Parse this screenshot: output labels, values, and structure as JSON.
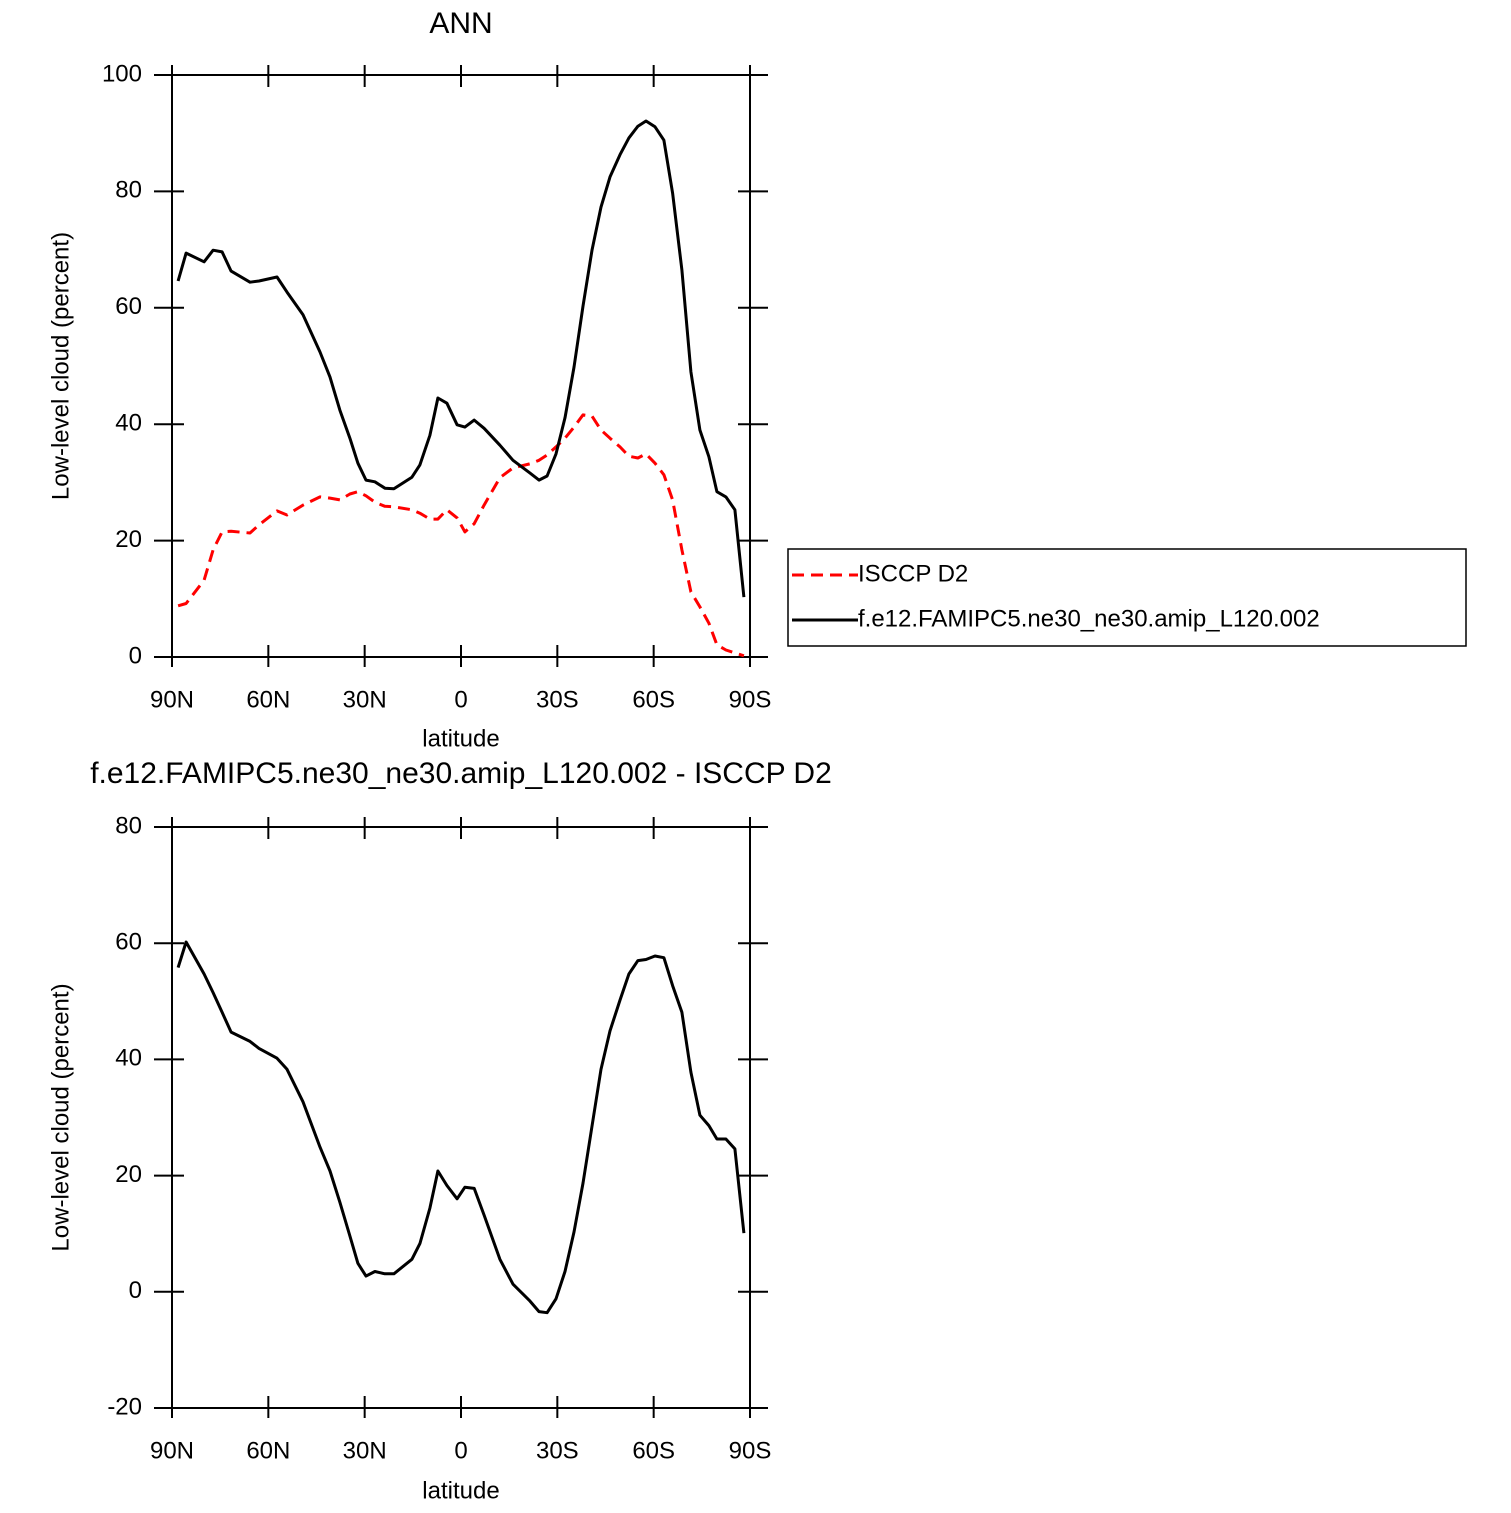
{
  "chart_data": [
    {
      "type": "line",
      "title": "ANN",
      "xlabel": "latitude",
      "ylabel": "Low-level cloud (percent)",
      "x": [
        88.1,
        85.6,
        80.0,
        77.2,
        74.4,
        71.6,
        65.7,
        62.9,
        57.3,
        54.2,
        49.2,
        43.9,
        40.8,
        37.7,
        34.6,
        32.1,
        29.6,
        26.8,
        23.7,
        20.9,
        15.3,
        12.8,
        9.7,
        7.2,
        4.4,
        1.2,
        -1.2,
        -4.1,
        -7.2,
        -12.1,
        -16.2,
        -21.5,
        -24.3,
        -26.8,
        -29.6,
        -32.4,
        -35.2,
        -38.0,
        -40.8,
        -43.6,
        -46.4,
        -49.5,
        -52.3,
        -55.1,
        -57.6,
        -60.4,
        -63.2,
        -65.9,
        -68.8,
        -71.6,
        -74.4,
        -77.2,
        -79.7,
        -82.5,
        -85.3,
        -88.1
      ],
      "series": [
        {
          "name": "ISCCP D2",
          "color": "#ff0000",
          "linestyle": "dashed",
          "values": [
            8.8,
            9.2,
            13.2,
            18.4,
            21.5,
            21.6,
            21.3,
            22.7,
            25.1,
            24.4,
            26.1,
            27.5,
            27.3,
            27.0,
            28.0,
            28.4,
            27.7,
            26.6,
            25.9,
            25.8,
            25.3,
            24.7,
            23.7,
            23.7,
            25.3,
            23.9,
            21.5,
            22.9,
            26.1,
            30.8,
            32.5,
            33.2,
            33.8,
            34.7,
            36.1,
            37.6,
            39.5,
            41.6,
            41.4,
            39.0,
            37.6,
            36.1,
            34.5,
            34.2,
            34.9,
            33.3,
            31.3,
            27.0,
            18.4,
            11.2,
            8.6,
            5.8,
            2.1,
            1.2,
            0.7,
            0.2
          ]
        },
        {
          "name": "f.e12.FAMIPC5.ne30_ne30.amip_L120.002",
          "color": "#000000",
          "linestyle": "solid",
          "values": [
            64.6,
            69.4,
            67.9,
            69.9,
            69.6,
            66.3,
            64.4,
            64.6,
            65.3,
            62.7,
            58.8,
            52.4,
            48.1,
            42.4,
            37.6,
            33.3,
            30.4,
            30.1,
            29.0,
            28.9,
            30.9,
            33.0,
            38.1,
            44.5,
            43.6,
            39.9,
            39.5,
            40.7,
            39.3,
            36.4,
            33.8,
            31.6,
            30.4,
            31.1,
            34.9,
            41.1,
            49.8,
            60.3,
            69.9,
            77.3,
            82.5,
            86.3,
            89.2,
            91.2,
            92.1,
            91.1,
            88.8,
            79.7,
            66.5,
            49.0,
            39.0,
            34.4,
            28.4,
            27.5,
            25.3,
            10.3
          ]
        }
      ],
      "xlim": [
        90,
        -90
      ],
      "xticks": [
        {
          "value": 90,
          "label": "90N"
        },
        {
          "value": 60,
          "label": "60N"
        },
        {
          "value": 30,
          "label": "30N"
        },
        0,
        {
          "value": -30,
          "label": "30S"
        },
        {
          "value": -60,
          "label": "60S"
        },
        {
          "value": -90,
          "label": "90S"
        }
      ],
      "ylim": [
        0,
        100
      ],
      "yticks": [
        0,
        20,
        40,
        60,
        80,
        100
      ],
      "legend": "right"
    },
    {
      "type": "line",
      "title": "f.e12.FAMIPC5.ne30_ne30.amip_L120.002 - ISCCP D2",
      "xlabel": "latitude",
      "ylabel": "Low-level cloud (percent)",
      "x": [
        88.1,
        85.6,
        80.0,
        77.2,
        74.4,
        71.6,
        65.7,
        62.9,
        57.3,
        54.2,
        49.2,
        43.9,
        40.8,
        37.7,
        34.6,
        32.1,
        29.6,
        26.8,
        23.7,
        20.9,
        15.3,
        12.8,
        9.7,
        7.2,
        4.4,
        1.2,
        -1.2,
        -4.1,
        -7.2,
        -12.1,
        -16.2,
        -21.5,
        -24.3,
        -26.8,
        -29.6,
        -32.4,
        -35.2,
        -38.0,
        -40.8,
        -43.6,
        -46.4,
        -49.5,
        -52.3,
        -55.1,
        -57.6,
        -60.4,
        -63.2,
        -65.9,
        -68.8,
        -71.6,
        -74.4,
        -77.2,
        -79.7,
        -82.5,
        -85.3,
        -88.1
      ],
      "color": "#000000",
      "values": [
        55.8,
        60.2,
        54.7,
        51.5,
        48.1,
        44.7,
        43.1,
        41.9,
        40.2,
        38.3,
        32.7,
        24.9,
        20.8,
        15.4,
        9.6,
        4.9,
        2.7,
        3.5,
        3.1,
        3.1,
        5.6,
        8.3,
        14.4,
        20.8,
        18.3,
        16.0,
        18.0,
        17.8,
        13.2,
        5.6,
        1.3,
        -1.6,
        -3.4,
        -3.6,
        -1.2,
        3.5,
        10.3,
        18.7,
        28.5,
        38.3,
        44.9,
        50.2,
        54.7,
        57.0,
        57.2,
        57.8,
        57.5,
        52.7,
        48.1,
        37.8,
        30.4,
        28.6,
        26.3,
        26.3,
        24.6,
        10.1
      ],
      "xlim": [
        90,
        -90
      ],
      "xticks": [
        {
          "value": 90,
          "label": "90N"
        },
        {
          "value": 60,
          "label": "60N"
        },
        {
          "value": 30,
          "label": "30N"
        },
        0,
        {
          "value": -30,
          "label": "30S"
        },
        {
          "value": -60,
          "label": "60S"
        },
        {
          "value": -90,
          "label": "90S"
        }
      ],
      "ylim": [
        -20,
        80
      ],
      "yticks": [
        -20,
        0,
        20,
        40,
        60,
        80
      ]
    }
  ]
}
